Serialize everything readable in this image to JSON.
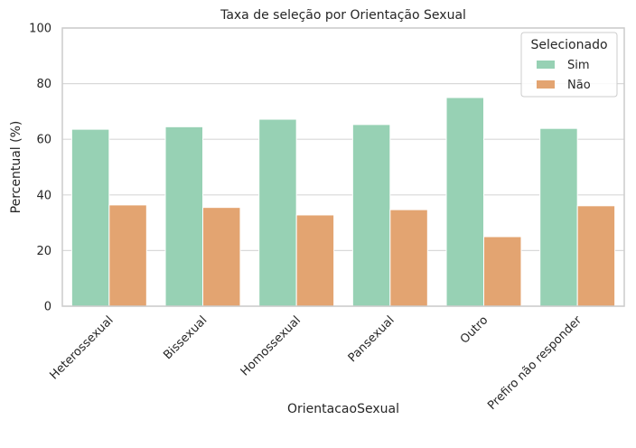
{
  "chart_data": {
    "type": "bar",
    "title": "Taxa de seleção por Orientação Sexual",
    "xlabel": "OrientacaoSexual",
    "ylabel": "Percentual (%)",
    "categories": [
      "Heterossexual",
      "Bissexual",
      "Homossexual",
      "Pansexual",
      "Outro",
      "Prefiro não responder"
    ],
    "series": [
      {
        "name": "Sim",
        "values": [
          63.6,
          64.5,
          67.2,
          65.3,
          75.0,
          63.9
        ],
        "color": "#97d1b4"
      },
      {
        "name": "Não",
        "values": [
          36.4,
          35.5,
          32.8,
          34.7,
          25.0,
          36.1
        ],
        "color": "#e3a471"
      }
    ],
    "ylim": [
      0,
      100
    ],
    "yticks": [
      0,
      20,
      40,
      60,
      80,
      100
    ],
    "grid": "horizontal",
    "legend": {
      "title": "Selecionado",
      "position": "top-right"
    }
  }
}
